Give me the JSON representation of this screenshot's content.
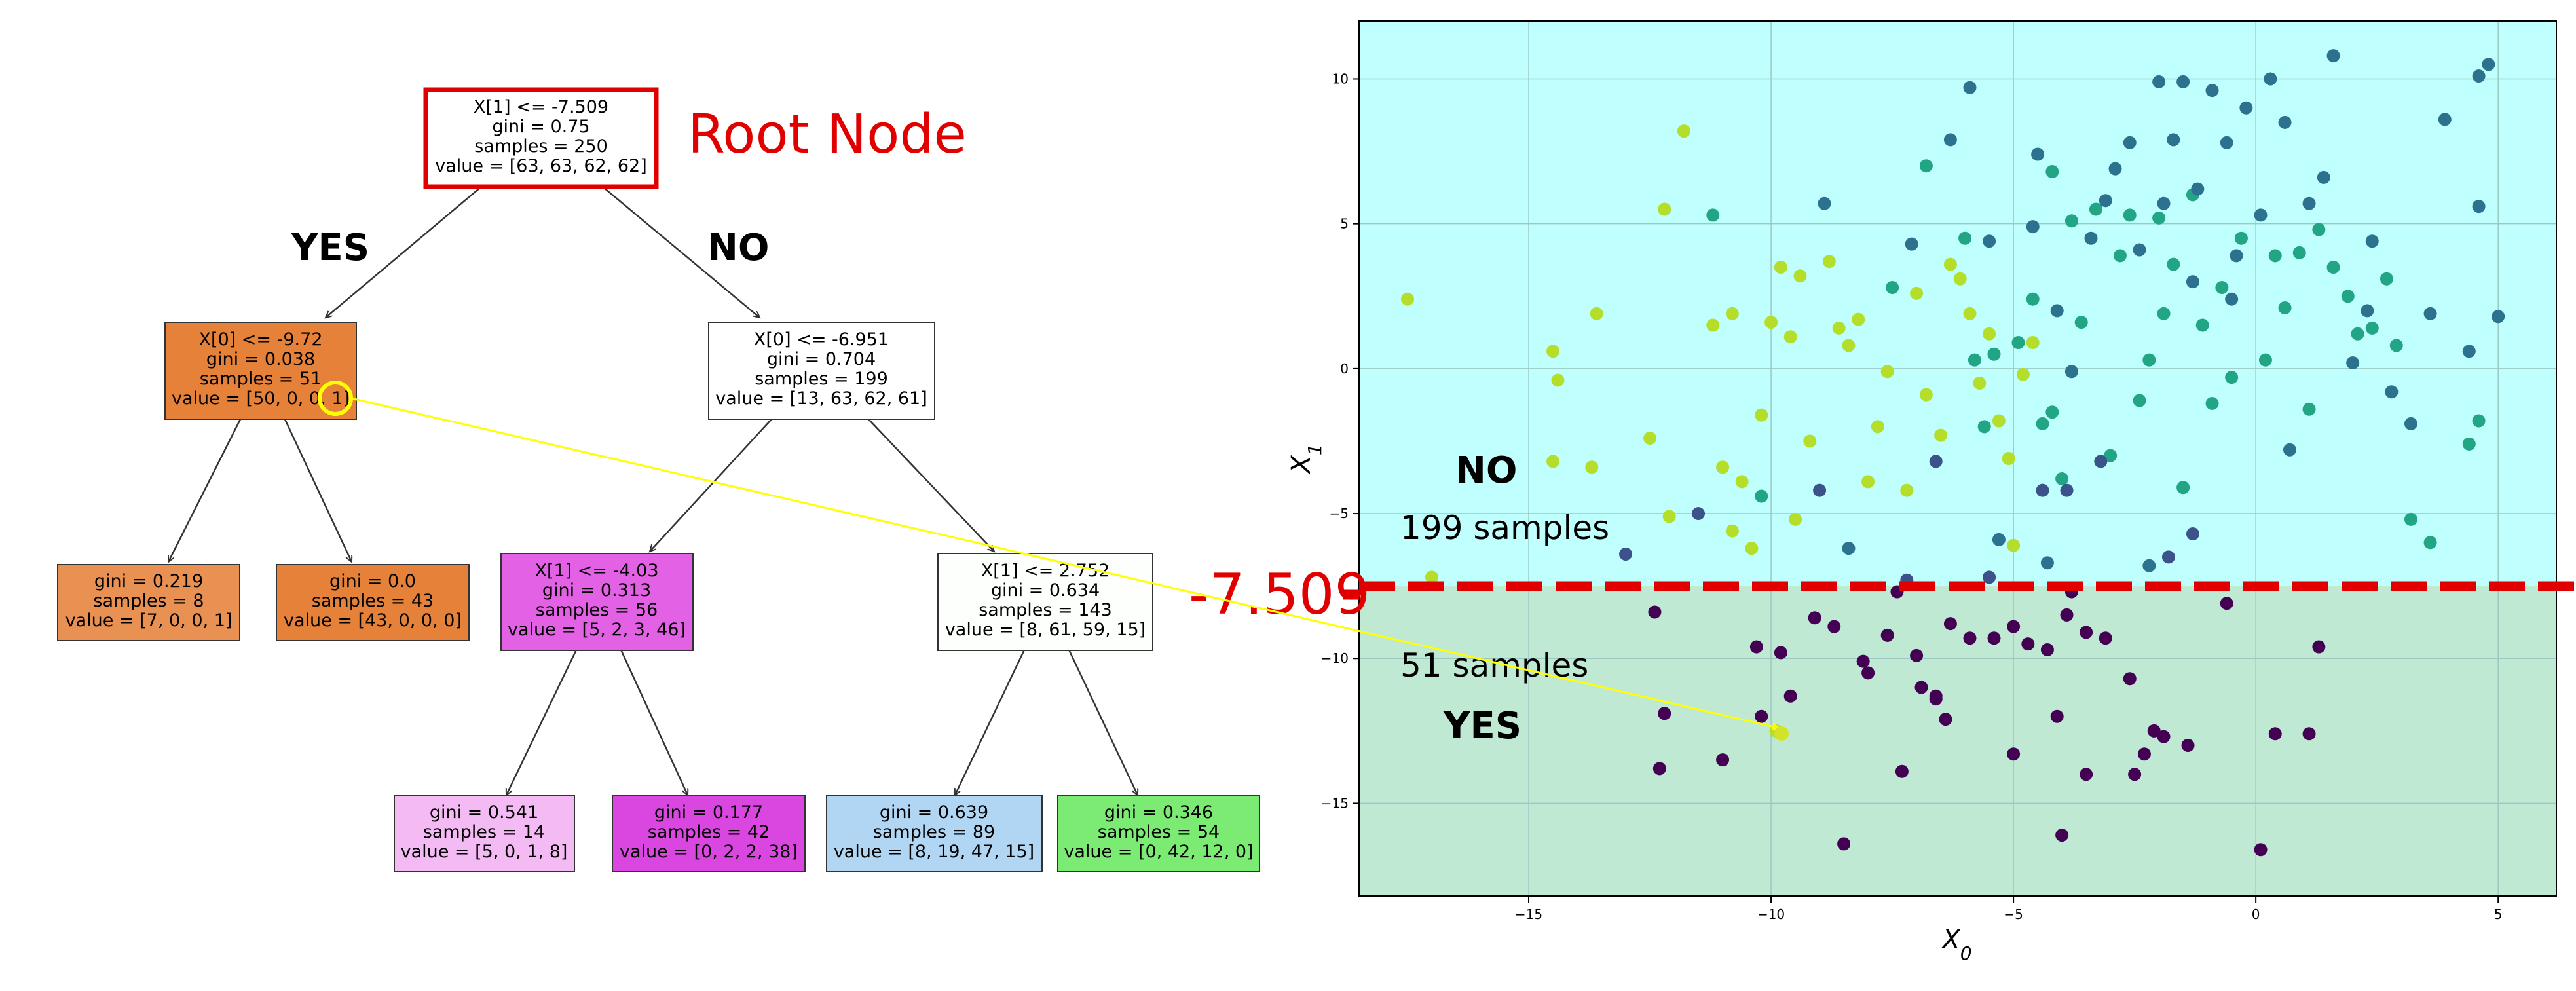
{
  "tree": {
    "nodes": [
      {
        "id": "root",
        "lines": [
          "X[1] <= -7.509",
          "gini = 0.75",
          "samples = 250",
          "value = [63, 63, 62, 62]"
        ],
        "fill": "#ffffff"
      },
      {
        "id": "n1",
        "lines": [
          "X[0] <= -9.72",
          "gini = 0.038",
          "samples = 51",
          "value = [50, 0, 0, 1]"
        ],
        "fill": "#e58139"
      },
      {
        "id": "n2",
        "lines": [
          "X[0] <= -6.951",
          "gini = 0.704",
          "samples = 199",
          "value = [13, 63, 62, 61]"
        ],
        "fill": "#ffffff"
      },
      {
        "id": "n3",
        "lines": [
          "gini = 0.219",
          "samples = 8",
          "value = [7, 0, 0, 1]"
        ],
        "fill": "#e89152"
      },
      {
        "id": "n4",
        "lines": [
          "gini = 0.0",
          "samples = 43",
          "value = [43, 0, 0, 0]"
        ],
        "fill": "#e58139"
      },
      {
        "id": "n5",
        "lines": [
          "X[1] <= -4.03",
          "gini = 0.313",
          "samples = 56",
          "value = [5, 2, 3, 46]"
        ],
        "fill": "#e261e4"
      },
      {
        "id": "n6",
        "lines": [
          "X[1] <= 2.752",
          "gini = 0.634",
          "samples = 143",
          "value = [8, 61, 59, 15]"
        ],
        "fill": "#fcfffc"
      },
      {
        "id": "n7",
        "lines": [
          "gini = 0.541",
          "samples = 14",
          "value = [5, 0, 1, 8]"
        ],
        "fill": "#f3baf4"
      },
      {
        "id": "n8",
        "lines": [
          "gini = 0.177",
          "samples = 42",
          "value = [0, 2, 2, 38]"
        ],
        "fill": "#da46e0"
      },
      {
        "id": "n9",
        "lines": [
          "gini = 0.639",
          "samples = 89",
          "value = [8, 19, 47, 15]"
        ],
        "fill": "#b0d6f4"
      },
      {
        "id": "n10",
        "lines": [
          "gini = 0.346",
          "samples = 54",
          "value = [0, 42, 12, 0]"
        ],
        "fill": "#7beb73"
      }
    ],
    "root_label": "Root Node",
    "yes_label": "YES",
    "no_label": "NO"
  },
  "scatter": {
    "xlabel": "X",
    "xlabel_sub": "0",
    "ylabel": "X",
    "ylabel_sub": "1",
    "xticks": [
      "−15",
      "−10",
      "−5",
      "0",
      "5"
    ],
    "yticks": [
      "10",
      "5",
      "0",
      "−5",
      "−10",
      "−15"
    ],
    "threshold_label": "-7.509",
    "no_label": "NO",
    "no_samples": "199 samples",
    "yes_label": "YES",
    "yes_samples": "51 samples",
    "colors": {
      "top_region": "#bffffd",
      "bottom_region": "#c0e9d3",
      "threshold": "#e00000",
      "arrow": "#ffff00"
    }
  },
  "chart_data": {
    "type": "scatter",
    "xlabel": "X0",
    "ylabel": "X1",
    "xlim": [
      -18.5,
      6.2
    ],
    "ylim": [
      -18.2,
      12
    ],
    "threshold_y": -7.509,
    "points": [
      [
        -17.5,
        2.4,
        "#b5de2b"
      ],
      [
        -14.5,
        0.6,
        "#b5de2b"
      ],
      [
        -14.4,
        -0.4,
        "#b5de2b"
      ],
      [
        -13.6,
        1.9,
        "#b5de2b"
      ],
      [
        -13.7,
        -3.4,
        "#b5de2b"
      ],
      [
        -14.5,
        -3.2,
        "#b5de2b"
      ],
      [
        -12.5,
        -2.4,
        "#b5de2b"
      ],
      [
        -12.2,
        5.5,
        "#b5de2b"
      ],
      [
        -11.8,
        8.2,
        "#b5de2b"
      ],
      [
        -11.2,
        1.5,
        "#b5de2b"
      ],
      [
        -10.8,
        1.9,
        "#b5de2b"
      ],
      [
        -11.0,
        -3.4,
        "#b5de2b"
      ],
      [
        -10.6,
        -3.9,
        "#b5de2b"
      ],
      [
        -10.8,
        -5.6,
        "#b5de2b"
      ],
      [
        -10.4,
        -6.2,
        "#b5de2b"
      ],
      [
        -10.2,
        -1.6,
        "#b5de2b"
      ],
      [
        -10.0,
        1.6,
        "#b5de2b"
      ],
      [
        -9.8,
        3.5,
        "#b5de2b"
      ],
      [
        -9.6,
        1.1,
        "#b5de2b"
      ],
      [
        -9.4,
        3.2,
        "#b5de2b"
      ],
      [
        -9.2,
        -2.5,
        "#b5de2b"
      ],
      [
        -8.8,
        3.7,
        "#b5de2b"
      ],
      [
        -8.6,
        1.4,
        "#b5de2b"
      ],
      [
        -8.4,
        0.8,
        "#b5de2b"
      ],
      [
        -8.2,
        1.7,
        "#b5de2b"
      ],
      [
        -8.0,
        -3.9,
        "#b5de2b"
      ],
      [
        -7.8,
        -2.0,
        "#b5de2b"
      ],
      [
        -7.6,
        -0.1,
        "#b5de2b"
      ],
      [
        -7.2,
        -4.2,
        "#b5de2b"
      ],
      [
        -7.0,
        2.6,
        "#b5de2b"
      ],
      [
        -6.8,
        -0.9,
        "#b5de2b"
      ],
      [
        -6.5,
        -2.3,
        "#b5de2b"
      ],
      [
        -6.3,
        3.6,
        "#b5de2b"
      ],
      [
        -6.1,
        3.1,
        "#b5de2b"
      ],
      [
        -5.9,
        1.9,
        "#b5de2b"
      ],
      [
        -5.7,
        -0.5,
        "#b5de2b"
      ],
      [
        -5.5,
        1.2,
        "#b5de2b"
      ],
      [
        -5.3,
        -1.8,
        "#b5de2b"
      ],
      [
        -5.1,
        -3.1,
        "#b5de2b"
      ],
      [
        -5.0,
        -6.1,
        "#b5de2b"
      ],
      [
        -4.8,
        -0.2,
        "#b5de2b"
      ],
      [
        -4.6,
        0.9,
        "#b5de2b"
      ],
      [
        -12.1,
        -5.1,
        "#b5de2b"
      ],
      [
        -9.5,
        -5.2,
        "#b5de2b"
      ],
      [
        -9.9,
        -12.5,
        "#b5de2b"
      ],
      [
        -17.0,
        -7.2,
        "#b5de2b"
      ],
      [
        -11.2,
        5.3,
        "#21a585"
      ],
      [
        -10.2,
        -4.4,
        "#21a585"
      ],
      [
        -7.5,
        2.8,
        "#21a585"
      ],
      [
        -6.8,
        7.0,
        "#21a585"
      ],
      [
        -6.0,
        4.5,
        "#21a585"
      ],
      [
        -5.6,
        -2.0,
        "#21a585"
      ],
      [
        -5.4,
        0.5,
        "#21a585"
      ],
      [
        -4.9,
        0.9,
        "#21a585"
      ],
      [
        -4.6,
        2.4,
        "#21a585"
      ],
      [
        -4.4,
        -1.9,
        "#21a585"
      ],
      [
        -4.2,
        6.8,
        "#21a585"
      ],
      [
        -4.0,
        -3.8,
        "#21a585"
      ],
      [
        -3.8,
        5.1,
        "#21a585"
      ],
      [
        -3.6,
        1.6,
        "#21a585"
      ],
      [
        -3.3,
        5.5,
        "#21a585"
      ],
      [
        -3.0,
        -3.0,
        "#21a585"
      ],
      [
        -2.8,
        3.9,
        "#21a585"
      ],
      [
        -2.6,
        5.3,
        "#21a585"
      ],
      [
        -2.4,
        -1.1,
        "#21a585"
      ],
      [
        -2.2,
        0.3,
        "#21a585"
      ],
      [
        -1.9,
        1.9,
        "#21a585"
      ],
      [
        -1.7,
        3.6,
        "#21a585"
      ],
      [
        -1.5,
        -4.1,
        "#21a585"
      ],
      [
        -1.3,
        6.0,
        "#21a585"
      ],
      [
        -1.1,
        1.5,
        "#21a585"
      ],
      [
        -0.9,
        -1.2,
        "#21a585"
      ],
      [
        -0.7,
        2.8,
        "#21a585"
      ],
      [
        -0.5,
        -0.3,
        "#21a585"
      ],
      [
        -0.3,
        4.5,
        "#21a585"
      ],
      [
        0.2,
        0.3,
        "#21a585"
      ],
      [
        0.4,
        3.9,
        "#21a585"
      ],
      [
        0.6,
        2.1,
        "#21a585"
      ],
      [
        0.9,
        4.0,
        "#21a585"
      ],
      [
        1.1,
        -1.4,
        "#21a585"
      ],
      [
        1.3,
        4.8,
        "#21a585"
      ],
      [
        1.6,
        3.5,
        "#21a585"
      ],
      [
        1.9,
        2.5,
        "#21a585"
      ],
      [
        2.1,
        1.2,
        "#21a585"
      ],
      [
        2.4,
        1.4,
        "#21a585"
      ],
      [
        2.7,
        3.1,
        "#21a585"
      ],
      [
        2.9,
        0.8,
        "#21a585"
      ],
      [
        3.2,
        -5.2,
        "#21a585"
      ],
      [
        3.6,
        -6.0,
        "#21a585"
      ],
      [
        4.4,
        -2.6,
        "#21a585"
      ],
      [
        4.6,
        -1.8,
        "#21a585"
      ],
      [
        -5.8,
        0.3,
        "#21a585"
      ],
      [
        -4.2,
        -1.5,
        "#21a585"
      ],
      [
        -2.0,
        5.2,
        "#21a585"
      ],
      [
        -8.9,
        5.7,
        "#2c728e"
      ],
      [
        -7.1,
        4.3,
        "#2c728e"
      ],
      [
        -6.3,
        7.9,
        "#2c728e"
      ],
      [
        -5.9,
        9.7,
        "#2c728e"
      ],
      [
        -5.5,
        4.4,
        "#2c728e"
      ],
      [
        -4.6,
        4.9,
        "#2c728e"
      ],
      [
        -4.5,
        7.4,
        "#2c728e"
      ],
      [
        -4.1,
        2.0,
        "#2c728e"
      ],
      [
        -3.8,
        -0.1,
        "#2c728e"
      ],
      [
        -3.4,
        4.5,
        "#2c728e"
      ],
      [
        -3.1,
        5.8,
        "#2c728e"
      ],
      [
        -2.9,
        6.9,
        "#2c728e"
      ],
      [
        -2.6,
        7.8,
        "#2c728e"
      ],
      [
        -2.4,
        4.1,
        "#2c728e"
      ],
      [
        -2.0,
        9.9,
        "#2c728e"
      ],
      [
        -1.9,
        5.7,
        "#2c728e"
      ],
      [
        -1.7,
        7.9,
        "#2c728e"
      ],
      [
        -1.5,
        9.9,
        "#2c728e"
      ],
      [
        -1.3,
        3.0,
        "#2c728e"
      ],
      [
        -1.2,
        6.2,
        "#2c728e"
      ],
      [
        -0.9,
        9.6,
        "#2c728e"
      ],
      [
        -0.6,
        7.8,
        "#2c728e"
      ],
      [
        -0.4,
        3.9,
        "#2c728e"
      ],
      [
        -0.2,
        9.0,
        "#2c728e"
      ],
      [
        0.1,
        5.3,
        "#2c728e"
      ],
      [
        0.3,
        10.0,
        "#2c728e"
      ],
      [
        0.7,
        -2.8,
        "#2c728e"
      ],
      [
        1.1,
        5.7,
        "#2c728e"
      ],
      [
        1.4,
        6.6,
        "#2c728e"
      ],
      [
        1.6,
        10.8,
        "#2c728e"
      ],
      [
        2.0,
        0.2,
        "#2c728e"
      ],
      [
        2.4,
        4.4,
        "#2c728e"
      ],
      [
        2.8,
        -0.8,
        "#2c728e"
      ],
      [
        3.2,
        -1.9,
        "#2c728e"
      ],
      [
        3.6,
        1.9,
        "#2c728e"
      ],
      [
        3.9,
        8.6,
        "#2c728e"
      ],
      [
        4.6,
        10.1,
        "#2c728e"
      ],
      [
        4.8,
        10.5,
        "#2c728e"
      ],
      [
        5.0,
        1.8,
        "#2c728e"
      ],
      [
        4.4,
        0.6,
        "#2c728e"
      ],
      [
        -8.4,
        -6.2,
        "#2c728e"
      ],
      [
        -5.3,
        -5.9,
        "#2c728e"
      ],
      [
        -4.3,
        -6.7,
        "#2c728e"
      ],
      [
        -2.2,
        -6.8,
        "#2c728e"
      ],
      [
        0.6,
        8.5,
        "#2c728e"
      ],
      [
        2.3,
        2.0,
        "#2c728e"
      ],
      [
        -0.5,
        2.4,
        "#2c728e"
      ],
      [
        4.6,
        5.6,
        "#2c728e"
      ],
      [
        -13.0,
        -6.4,
        "#3b528b"
      ],
      [
        -11.5,
        -5.0,
        "#3b528b"
      ],
      [
        -9.0,
        -4.2,
        "#3b528b"
      ],
      [
        -6.6,
        -3.2,
        "#3b528b"
      ],
      [
        -4.4,
        -4.2,
        "#3b528b"
      ],
      [
        -3.9,
        -4.2,
        "#3b528b"
      ],
      [
        -3.2,
        -3.2,
        "#3b528b"
      ],
      [
        -1.8,
        -6.5,
        "#3b528b"
      ],
      [
        -1.3,
        -5.7,
        "#3b528b"
      ],
      [
        -7.2,
        -7.3,
        "#3b528b"
      ],
      [
        -5.5,
        -7.2,
        "#3b528b"
      ],
      [
        -12.4,
        -8.4,
        "#440154"
      ],
      [
        -12.2,
        -11.9,
        "#440154"
      ],
      [
        -12.3,
        -13.8,
        "#440154"
      ],
      [
        -10.3,
        -9.6,
        "#440154"
      ],
      [
        -9.8,
        -9.8,
        "#440154"
      ],
      [
        -9.6,
        -11.3,
        "#440154"
      ],
      [
        -11.0,
        -13.5,
        "#440154"
      ],
      [
        -8.7,
        -8.9,
        "#440154"
      ],
      [
        -8.1,
        -10.1,
        "#440154"
      ],
      [
        -8.0,
        -10.5,
        "#440154"
      ],
      [
        -7.6,
        -9.2,
        "#440154"
      ],
      [
        -7.0,
        -9.9,
        "#440154"
      ],
      [
        -6.9,
        -11.0,
        "#440154"
      ],
      [
        -6.6,
        -11.4,
        "#440154"
      ],
      [
        -6.4,
        -12.1,
        "#440154"
      ],
      [
        -6.3,
        -8.8,
        "#440154"
      ],
      [
        -5.9,
        -9.3,
        "#440154"
      ],
      [
        -5.4,
        -9.3,
        "#440154"
      ],
      [
        -5.0,
        -8.9,
        "#440154"
      ],
      [
        -4.7,
        -9.5,
        "#440154"
      ],
      [
        -4.3,
        -9.7,
        "#440154"
      ],
      [
        -4.1,
        -12.0,
        "#440154"
      ],
      [
        -3.9,
        -8.5,
        "#440154"
      ],
      [
        -3.5,
        -9.1,
        "#440154"
      ],
      [
        -3.1,
        -9.3,
        "#440154"
      ],
      [
        -2.6,
        -10.7,
        "#440154"
      ],
      [
        -2.3,
        -13.3,
        "#440154"
      ],
      [
        -2.1,
        -12.5,
        "#440154"
      ],
      [
        -1.4,
        -13.0,
        "#440154"
      ],
      [
        -0.6,
        -8.1,
        "#440154"
      ],
      [
        0.4,
        -12.6,
        "#440154"
      ],
      [
        1.1,
        -12.6,
        "#440154"
      ],
      [
        1.3,
        -9.6,
        "#440154"
      ],
      [
        -8.5,
        -16.4,
        "#440154"
      ],
      [
        -7.3,
        -13.9,
        "#440154"
      ],
      [
        -5.0,
        -13.3,
        "#440154"
      ],
      [
        -4.0,
        -16.1,
        "#440154"
      ],
      [
        -3.5,
        -14.0,
        "#440154"
      ],
      [
        -2.5,
        -14.0,
        "#440154"
      ],
      [
        -1.9,
        -12.7,
        "#440154"
      ],
      [
        0.1,
        -16.6,
        "#440154"
      ],
      [
        -10.2,
        -12.0,
        "#440154"
      ],
      [
        -6.6,
        -11.3,
        "#440154"
      ],
      [
        -3.8,
        -7.7,
        "#440154"
      ],
      [
        -7.4,
        -7.7,
        "#440154"
      ],
      [
        -9.1,
        -8.6,
        "#440154"
      ]
    ]
  }
}
